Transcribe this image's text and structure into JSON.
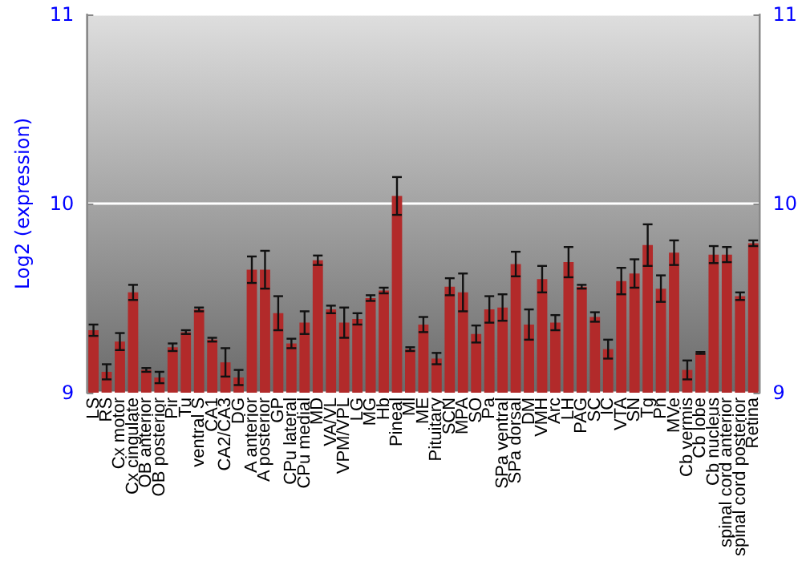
{
  "chart_data": {
    "type": "bar",
    "ylabel": "Log2 (expression)",
    "categories": [
      "LS",
      "RS",
      "Cx motor",
      "Cx cingulate",
      "OB anterior",
      "OB posterior",
      "Pir",
      "Tu",
      "ventral S",
      "CA1",
      "CA2/CA3",
      "DG",
      "A anterior",
      "A posterior",
      "GP",
      "CPu lateral",
      "CPu medial",
      "MD",
      "VA/VL",
      "VPM/VPL",
      "LG",
      "MG",
      "Hb",
      "Pineal",
      "Ml",
      "ME",
      "Pituitary",
      "SCN",
      "MPA",
      "SO",
      "Pa",
      "SPa ventral",
      "SPa dorsal",
      "DM",
      "VMH",
      "Arc",
      "LH",
      "PAG",
      "SC",
      "IC",
      "VTA",
      "SN",
      "Tg",
      "Pn",
      "MVe",
      "Cb vermis",
      "Cb lobe",
      "Cb nucleus",
      "spinal cord anterior",
      "spinal cord posterior",
      "Retina"
    ],
    "values": [
      9.33,
      9.11,
      9.27,
      9.53,
      9.12,
      9.08,
      9.24,
      9.32,
      9.44,
      9.28,
      9.16,
      9.08,
      9.65,
      9.65,
      9.42,
      9.26,
      9.37,
      9.7,
      9.44,
      9.37,
      9.39,
      9.5,
      9.54,
      10.04,
      9.23,
      9.36,
      9.18,
      9.56,
      9.53,
      9.31,
      9.44,
      9.45,
      9.68,
      9.36,
      9.6,
      9.37,
      9.69,
      9.56,
      9.4,
      9.23,
      9.59,
      9.63,
      9.78,
      9.55,
      9.74,
      9.12,
      9.21,
      9.73,
      9.73,
      9.51,
      9.79
    ],
    "errors": [
      0.03,
      0.04,
      0.045,
      0.04,
      0.01,
      0.03,
      0.02,
      0.01,
      0.01,
      0.01,
      0.075,
      0.04,
      0.07,
      0.1,
      0.09,
      0.025,
      0.06,
      0.025,
      0.02,
      0.08,
      0.03,
      0.015,
      0.015,
      0.1,
      0.01,
      0.04,
      0.03,
      0.045,
      0.1,
      0.045,
      0.07,
      0.07,
      0.065,
      0.08,
      0.07,
      0.04,
      0.08,
      0.01,
      0.025,
      0.05,
      0.07,
      0.075,
      0.11,
      0.07,
      0.065,
      0.05,
      0.005,
      0.045,
      0.04,
      0.02,
      0.015
    ],
    "color": "#b22a2a",
    "ylim": [
      9,
      11
    ],
    "yticks": [
      9,
      10,
      11
    ],
    "y2lim": [
      9,
      11
    ],
    "y2ticks": [
      9,
      10,
      11
    ],
    "grid": "y"
  }
}
